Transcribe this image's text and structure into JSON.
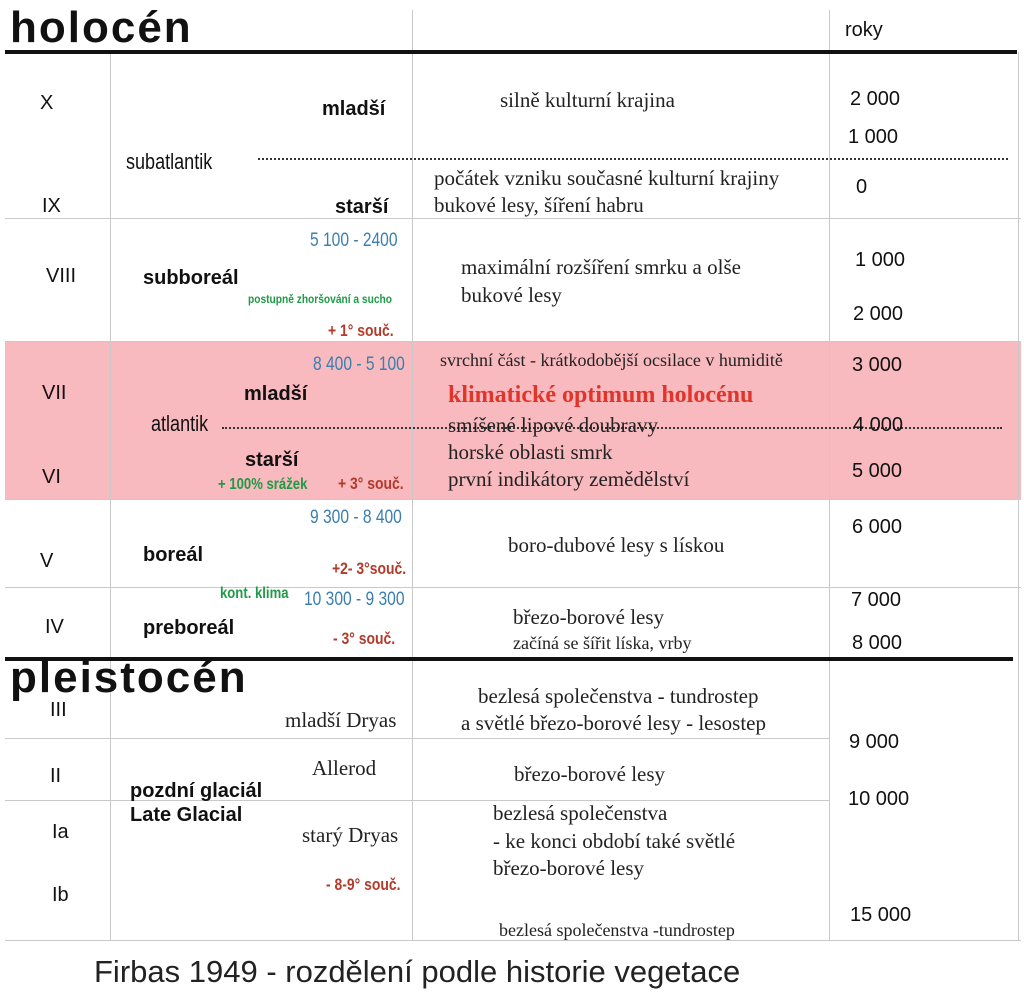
{
  "title_holocene": "holocén",
  "title_pleistocene": "pleistocén",
  "years_header": "roky",
  "caption": "Firbas 1949 - rozdělení podle historie vegetace",
  "colors": {
    "optimum_band": "#f8b9bf",
    "range_blue": "#3a7fb0",
    "temp_red": "#b33a2a",
    "climate_green": "#1f9a45",
    "optimum_red": "#e0352a"
  },
  "periods": {
    "X": "X",
    "IX": "IX",
    "VIII": "VIII",
    "VII": "VII",
    "VI": "VI",
    "V": "V",
    "IV": "IV",
    "III": "III",
    "II": "II",
    "Ia": "Ia",
    "Ib": "Ib"
  },
  "phases": {
    "subatlantik": "subatlantik",
    "mladsi": "mladší",
    "starsi": "starší",
    "subboreal": "subboreál",
    "atlantik": "atlantik",
    "atl_mladsi": "mladší",
    "atl_starsi": "starší",
    "boreal": "boreál",
    "preboreal": "preboreál",
    "mladsi_dryas": "mladší Dryas",
    "allerod": "Allerod",
    "pozdni_glacial": "pozdní glaciál",
    "late_glacial": "Late Glacial",
    "stary_dryas": "starý Dryas"
  },
  "ranges": {
    "subboreal": "5 100 - 2400",
    "atlantik": "8 400 - 5 100",
    "boreal": "9 300 - 8 400",
    "preboreal": "10 300 - 9 300"
  },
  "climate": {
    "subboreal_note": "postupně zhoršování a sucho",
    "subboreal_temp": "+ 1° souč.",
    "atlantik_precip": "+ 100% srážek",
    "atlantik_temp": "+ 3° souč.",
    "boreal_temp": "+2- 3°souč.",
    "preboreal_note": "kont. klima",
    "preboreal_temp": "- 3° souč.",
    "glacial_temp": "- 8-9° souč."
  },
  "vegetation": {
    "X": "silně kulturní krajina",
    "IX_1": "počátek vzniku současné kulturní krajiny",
    "IX_2": "bukové lesy, šíření habru",
    "VIII_1": "maximální rozšíření smrku a olše",
    "VIII_2": "bukové lesy",
    "VII_1": "svrchní část - krátkodobější ocsilace v humiditě",
    "optimum": "klimatické optimum holocénu",
    "VII_2": "smíšené lipové doubravy",
    "VI_1": "horské oblasti smrk",
    "VI_2": "první indikátory zemědělství",
    "V": "boro-dubové lesy s lískou",
    "IV_1": "březo-borové lesy",
    "IV_2": "začíná se šířit líska, vrby",
    "III_1": "bezlesá společenstva - tundrostep",
    "III_2": "a světlé březo-borové lesy - lesostep",
    "II": "březo-borové lesy",
    "Ia_1": "bezlesá společenstva",
    "Ia_2": "- ke konci období také světlé",
    "Ia_3": "březo-borové lesy",
    "Ib": "bezlesá společenstva -tundrostep"
  },
  "years": [
    "2 000",
    "1 000",
    "0",
    "1 000",
    "2 000",
    "3 000",
    "4 000",
    "5 000",
    "6 000",
    "7 000",
    "8 000",
    "9 000",
    "10 000",
    "15 000"
  ]
}
